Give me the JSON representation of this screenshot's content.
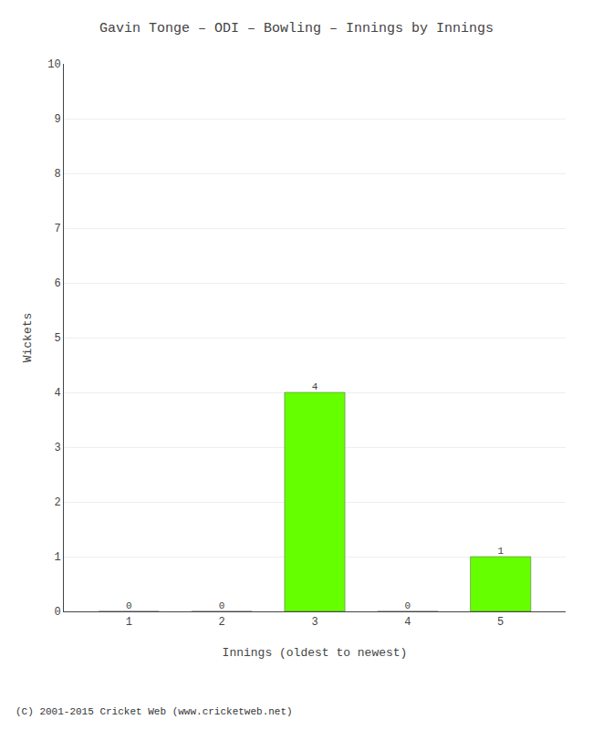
{
  "chart_data": {
    "type": "bar",
    "title": "Gavin Tonge – ODI – Bowling – Innings by Innings",
    "x_label": "Innings (oldest to newest)",
    "y_label": "Wickets",
    "x": [
      1,
      2,
      3,
      4,
      5
    ],
    "values": [
      0,
      0,
      4,
      0,
      1
    ],
    "color": "#66ff00",
    "xlim": [
      0.3,
      5.7
    ],
    "xticks": [
      1,
      2,
      3,
      4,
      5
    ],
    "ylim": [
      0,
      10
    ],
    "yticks": [
      0,
      1,
      2,
      3,
      4,
      5,
      6,
      7,
      8,
      9,
      10
    ],
    "grid": true,
    "data_labels": true,
    "annotations": [
      "(C) 2001-2015 Cricket Web (www.cricketweb.net)"
    ]
  }
}
